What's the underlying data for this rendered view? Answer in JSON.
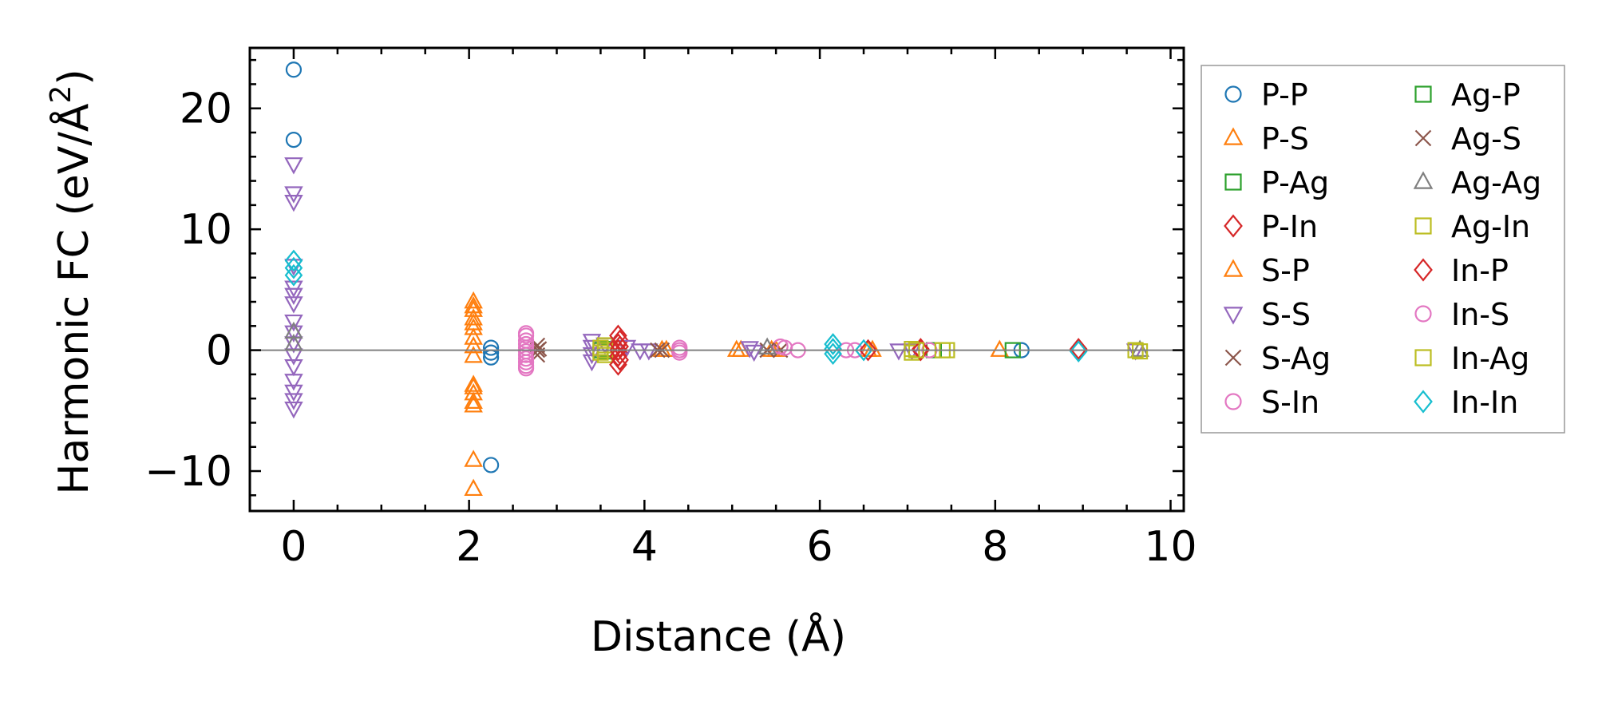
{
  "chart_data": {
    "type": "scatter",
    "title": "",
    "xlabel": "Distance (Å)",
    "ylabel_main": "Harmonic FC (eV/Å",
    "ylabel_sup": "2",
    "ylabel_end": ")",
    "xlim": [
      -0.5,
      10.15
    ],
    "ylim": [
      -13.3,
      25
    ],
    "xticks": [
      0,
      2,
      4,
      6,
      8,
      10
    ],
    "xtick_labels": [
      "0",
      "2",
      "4",
      "6",
      "8",
      "10"
    ],
    "yticks": [
      -10,
      0,
      10,
      20
    ],
    "ytick_labels": [
      "−10",
      "0",
      "10",
      "20"
    ],
    "zero_line": true,
    "grid": false,
    "legend_position": "outside-right",
    "series": [
      {
        "name": "P-P",
        "marker": "circle",
        "color": "#1f77b4",
        "points": [
          [
            0,
            23.2
          ],
          [
            0,
            17.4
          ],
          [
            2.25,
            0.2
          ],
          [
            2.25,
            -0.2
          ],
          [
            2.25,
            -0.6
          ],
          [
            2.25,
            -9.5
          ],
          [
            8.3,
            0
          ]
        ]
      },
      {
        "name": "P-S",
        "marker": "triangle-up",
        "color": "#ff7f0e",
        "points": [
          [
            2.05,
            4.0
          ],
          [
            2.05,
            3.3
          ],
          [
            2.05,
            2.6
          ],
          [
            2.05,
            1.8
          ],
          [
            2.05,
            1.0
          ],
          [
            2.05,
            0.3
          ],
          [
            2.05,
            -0.5
          ],
          [
            2.05,
            -2.9
          ],
          [
            2.05,
            -3.6
          ],
          [
            2.05,
            -4.3
          ],
          [
            2.05,
            -9.1
          ],
          [
            2.05,
            -11.5
          ],
          [
            4.25,
            0
          ],
          [
            5.1,
            0
          ],
          [
            5.5,
            0
          ],
          [
            6.6,
            0
          ],
          [
            8.05,
            0
          ]
        ]
      },
      {
        "name": "P-Ag",
        "marker": "square",
        "color": "#2ca02c",
        "points": [
          [
            3.55,
            0.1
          ],
          [
            3.55,
            -0.1
          ],
          [
            7.3,
            0
          ]
        ]
      },
      {
        "name": "P-In",
        "marker": "diamond",
        "color": "#d62728",
        "points": [
          [
            3.72,
            0.8
          ],
          [
            3.72,
            0.3
          ],
          [
            3.72,
            -0.3
          ],
          [
            3.72,
            -0.8
          ],
          [
            7.15,
            0.1
          ],
          [
            8.95,
            0
          ]
        ]
      },
      {
        "name": "S-P",
        "marker": "triangle-up",
        "color": "#ff7f0e",
        "points": [
          [
            2.05,
            3.6
          ],
          [
            2.05,
            2.2
          ],
          [
            2.05,
            -3.1
          ],
          [
            2.05,
            -4.6
          ],
          [
            4.2,
            0
          ],
          [
            5.05,
            0
          ],
          [
            5.45,
            0
          ],
          [
            6.55,
            0
          ]
        ]
      },
      {
        "name": "S-S",
        "marker": "triangle-down",
        "color": "#9467bd",
        "points": [
          [
            0,
            15.4
          ],
          [
            0,
            13.0
          ],
          [
            0,
            12.3
          ],
          [
            0,
            7.0
          ],
          [
            0,
            5.2
          ],
          [
            0,
            4.6
          ],
          [
            0,
            3.9
          ],
          [
            0,
            2.4
          ],
          [
            0,
            1.5
          ],
          [
            0,
            0.6
          ],
          [
            0,
            -0.4
          ],
          [
            0,
            -1.3
          ],
          [
            0,
            -2.5
          ],
          [
            0,
            -3.4
          ],
          [
            0,
            -4.1
          ],
          [
            0,
            -4.8
          ],
          [
            3.4,
            0.8
          ],
          [
            3.4,
            0.3
          ],
          [
            3.4,
            -0.3
          ],
          [
            3.4,
            -0.9
          ],
          [
            3.55,
            0.5
          ],
          [
            3.8,
            0.3
          ],
          [
            3.95,
            0
          ],
          [
            4.05,
            0
          ],
          [
            5.2,
            0.2
          ],
          [
            5.25,
            -0.1
          ],
          [
            6.9,
            0
          ],
          [
            7.05,
            0
          ],
          [
            9.6,
            0
          ]
        ]
      },
      {
        "name": "S-Ag",
        "marker": "x",
        "color": "#8c564b",
        "points": [
          [
            2.78,
            0.4
          ],
          [
            2.78,
            0
          ],
          [
            2.78,
            -0.4
          ],
          [
            4.2,
            0
          ],
          [
            5.55,
            0
          ]
        ]
      },
      {
        "name": "S-In",
        "marker": "circle",
        "color": "#e377c2",
        "points": [
          [
            2.65,
            1.4
          ],
          [
            2.65,
            0.8
          ],
          [
            2.65,
            0.2
          ],
          [
            2.65,
            -0.4
          ],
          [
            2.65,
            -1.0
          ],
          [
            2.65,
            -1.5
          ],
          [
            4.4,
            0.2
          ],
          [
            4.4,
            -0.2
          ],
          [
            5.55,
            0.3
          ],
          [
            5.75,
            0
          ],
          [
            6.4,
            0
          ],
          [
            7.25,
            0
          ]
        ]
      },
      {
        "name": "Ag-P",
        "marker": "square",
        "color": "#2ca02c",
        "points": [
          [
            3.5,
            0
          ],
          [
            8.2,
            0
          ]
        ]
      },
      {
        "name": "Ag-S",
        "marker": "x",
        "color": "#8c564b",
        "points": [
          [
            2.8,
            0.1
          ],
          [
            4.15,
            0
          ],
          [
            5.4,
            0
          ]
        ]
      },
      {
        "name": "Ag-Ag",
        "marker": "triangle-up",
        "color": "#7f7f7f",
        "points": [
          [
            0,
            1.5
          ],
          [
            0,
            0.5
          ],
          [
            5.4,
            0.2
          ],
          [
            9.65,
            0
          ]
        ]
      },
      {
        "name": "Ag-In",
        "marker": "square",
        "color": "#bcbd22",
        "points": [
          [
            3.55,
            0.4
          ],
          [
            3.55,
            0
          ],
          [
            3.55,
            -0.4
          ],
          [
            7.05,
            0.1
          ],
          [
            7.05,
            -0.2
          ],
          [
            7.45,
            0
          ],
          [
            9.65,
            -0.1
          ]
        ]
      },
      {
        "name": "In-P",
        "marker": "diamond",
        "color": "#d62728",
        "points": [
          [
            3.7,
            1.2
          ],
          [
            3.7,
            0.5
          ],
          [
            3.7,
            0
          ],
          [
            3.7,
            -0.5
          ],
          [
            3.7,
            -1.2
          ],
          [
            6.55,
            0
          ],
          [
            7.15,
            0
          ],
          [
            8.95,
            0.1
          ]
        ]
      },
      {
        "name": "In-S",
        "marker": "circle",
        "color": "#e377c2",
        "points": [
          [
            2.65,
            1.2
          ],
          [
            2.65,
            0.5
          ],
          [
            2.65,
            -0.1
          ],
          [
            2.65,
            -0.7
          ],
          [
            2.65,
            -1.3
          ],
          [
            4.4,
            0
          ],
          [
            5.6,
            0.2
          ],
          [
            6.3,
            0
          ]
        ]
      },
      {
        "name": "In-Ag",
        "marker": "square",
        "color": "#bcbd22",
        "points": [
          [
            3.5,
            0.2
          ],
          [
            3.5,
            -0.2
          ],
          [
            7.1,
            0
          ],
          [
            7.4,
            0
          ],
          [
            9.6,
            0
          ]
        ]
      },
      {
        "name": "In-In",
        "marker": "diamond",
        "color": "#17becf",
        "points": [
          [
            0,
            7.4
          ],
          [
            0,
            6.8
          ],
          [
            0,
            6.2
          ],
          [
            6.15,
            0.5
          ],
          [
            6.15,
            0.1
          ],
          [
            6.15,
            -0.3
          ],
          [
            6.5,
            0
          ],
          [
            8.95,
            -0.1
          ]
        ]
      }
    ]
  }
}
